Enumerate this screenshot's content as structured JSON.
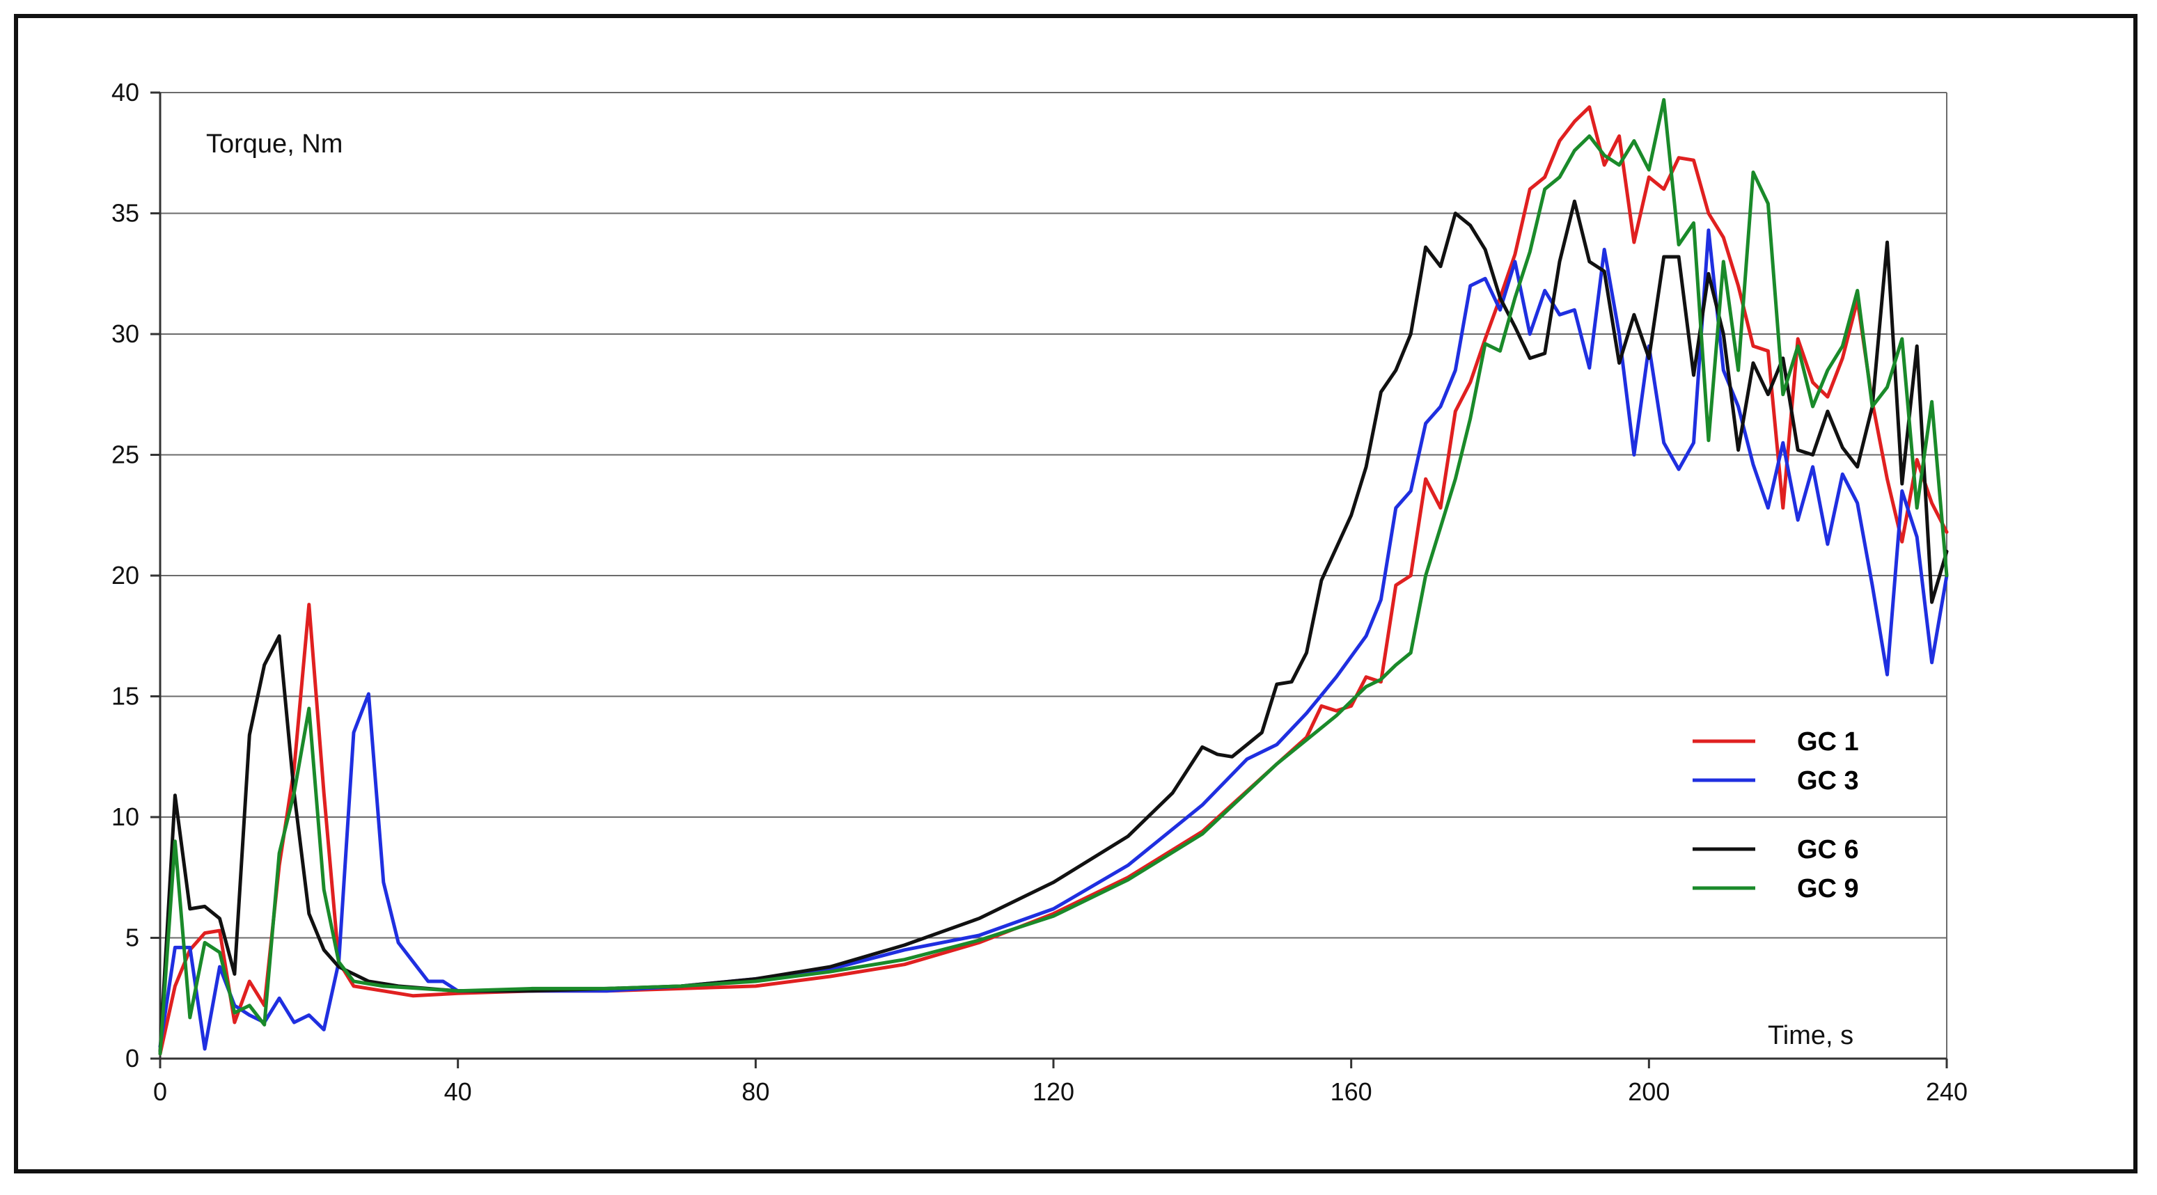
{
  "chart_data": {
    "type": "line",
    "ylabel": "Torque, Nm",
    "xlabel": "Time, s",
    "xlim": [
      0,
      240
    ],
    "ylim": [
      0,
      40
    ],
    "xticks": [
      0,
      40,
      80,
      120,
      160,
      200,
      240
    ],
    "yticks": [
      0,
      5,
      10,
      15,
      20,
      25,
      30,
      35,
      40
    ],
    "grid": "horizontal",
    "legend_position": "right",
    "series": [
      {
        "name": "GC 1",
        "color": "#e02020",
        "points": [
          [
            0,
            0.2
          ],
          [
            2,
            3
          ],
          [
            4,
            4.5
          ],
          [
            6,
            5.2
          ],
          [
            8,
            5.3
          ],
          [
            10,
            1.5
          ],
          [
            12,
            3.2
          ],
          [
            14,
            2.2
          ],
          [
            16,
            8
          ],
          [
            18,
            12
          ],
          [
            20,
            18.8
          ],
          [
            22,
            11
          ],
          [
            24,
            4
          ],
          [
            26,
            3
          ],
          [
            30,
            2.8
          ],
          [
            34,
            2.6
          ],
          [
            40,
            2.7
          ],
          [
            50,
            2.8
          ],
          [
            60,
            2.8
          ],
          [
            70,
            2.9
          ],
          [
            80,
            3
          ],
          [
            90,
            3.4
          ],
          [
            100,
            3.9
          ],
          [
            110,
            4.8
          ],
          [
            120,
            6
          ],
          [
            130,
            7.5
          ],
          [
            140,
            9.4
          ],
          [
            150,
            12.2
          ],
          [
            154,
            13.3
          ],
          [
            156,
            14.6
          ],
          [
            158,
            14.4
          ],
          [
            160,
            14.6
          ],
          [
            162,
            15.8
          ],
          [
            164,
            15.6
          ],
          [
            166,
            19.6
          ],
          [
            168,
            20
          ],
          [
            170,
            24
          ],
          [
            172,
            22.8
          ],
          [
            174,
            26.8
          ],
          [
            176,
            28
          ],
          [
            178,
            29.8
          ],
          [
            180,
            31.5
          ],
          [
            182,
            33.3
          ],
          [
            184,
            36
          ],
          [
            186,
            36.5
          ],
          [
            188,
            38
          ],
          [
            190,
            38.8
          ],
          [
            192,
            39.4
          ],
          [
            194,
            37
          ],
          [
            196,
            38.2
          ],
          [
            198,
            33.8
          ],
          [
            200,
            36.5
          ],
          [
            202,
            36
          ],
          [
            204,
            37.3
          ],
          [
            206,
            37.2
          ],
          [
            208,
            35
          ],
          [
            210,
            34
          ],
          [
            212,
            32
          ],
          [
            214,
            29.5
          ],
          [
            216,
            29.3
          ],
          [
            218,
            22.8
          ],
          [
            220,
            29.8
          ],
          [
            222,
            28
          ],
          [
            224,
            27.4
          ],
          [
            226,
            29
          ],
          [
            228,
            31.4
          ],
          [
            230,
            27.2
          ],
          [
            232,
            24
          ],
          [
            234,
            21.4
          ],
          [
            236,
            24.8
          ],
          [
            238,
            23
          ],
          [
            240,
            21.8
          ]
        ]
      },
      {
        "name": "GC 3",
        "color": "#1f2fe0",
        "points": [
          [
            0,
            0.5
          ],
          [
            2,
            4.6
          ],
          [
            4,
            4.6
          ],
          [
            6,
            0.4
          ],
          [
            8,
            3.8
          ],
          [
            10,
            2.2
          ],
          [
            12,
            1.8
          ],
          [
            14,
            1.5
          ],
          [
            16,
            2.5
          ],
          [
            18,
            1.5
          ],
          [
            20,
            1.8
          ],
          [
            22,
            1.2
          ],
          [
            24,
            4
          ],
          [
            26,
            13.5
          ],
          [
            28,
            15.1
          ],
          [
            30,
            7.3
          ],
          [
            32,
            4.8
          ],
          [
            34,
            4
          ],
          [
            36,
            3.2
          ],
          [
            38,
            3.2
          ],
          [
            40,
            2.8
          ],
          [
            50,
            2.8
          ],
          [
            60,
            2.8
          ],
          [
            70,
            3
          ],
          [
            80,
            3.3
          ],
          [
            90,
            3.7
          ],
          [
            100,
            4.5
          ],
          [
            110,
            5.1
          ],
          [
            120,
            6.2
          ],
          [
            130,
            8
          ],
          [
            140,
            10.5
          ],
          [
            146,
            12.4
          ],
          [
            150,
            13
          ],
          [
            154,
            14.3
          ],
          [
            158,
            15.8
          ],
          [
            162,
            17.5
          ],
          [
            164,
            19
          ],
          [
            166,
            22.8
          ],
          [
            168,
            23.5
          ],
          [
            170,
            26.3
          ],
          [
            172,
            27
          ],
          [
            174,
            28.5
          ],
          [
            176,
            32
          ],
          [
            178,
            32.3
          ],
          [
            180,
            31
          ],
          [
            182,
            33
          ],
          [
            184,
            30
          ],
          [
            186,
            31.8
          ],
          [
            188,
            30.8
          ],
          [
            190,
            31
          ],
          [
            192,
            28.6
          ],
          [
            194,
            33.5
          ],
          [
            196,
            30
          ],
          [
            198,
            25
          ],
          [
            200,
            29.5
          ],
          [
            202,
            25.5
          ],
          [
            204,
            24.4
          ],
          [
            206,
            25.5
          ],
          [
            208,
            34.3
          ],
          [
            210,
            28.5
          ],
          [
            212,
            27
          ],
          [
            214,
            24.6
          ],
          [
            216,
            22.8
          ],
          [
            218,
            25.5
          ],
          [
            220,
            22.3
          ],
          [
            222,
            24.5
          ],
          [
            224,
            21.3
          ],
          [
            226,
            24.2
          ],
          [
            228,
            23
          ],
          [
            230,
            19.6
          ],
          [
            232,
            15.9
          ],
          [
            234,
            23.5
          ],
          [
            236,
            21.6
          ],
          [
            238,
            16.4
          ],
          [
            240,
            20
          ]
        ]
      },
      {
        "name": "GC 6",
        "color": "#111111",
        "points": [
          [
            0,
            0.3
          ],
          [
            2,
            10.9
          ],
          [
            4,
            6.2
          ],
          [
            6,
            6.3
          ],
          [
            8,
            5.8
          ],
          [
            10,
            3.5
          ],
          [
            12,
            13.4
          ],
          [
            14,
            16.3
          ],
          [
            16,
            17.5
          ],
          [
            18,
            11
          ],
          [
            20,
            6
          ],
          [
            22,
            4.5
          ],
          [
            24,
            3.8
          ],
          [
            26,
            3.5
          ],
          [
            28,
            3.2
          ],
          [
            30,
            3.1
          ],
          [
            32,
            3
          ],
          [
            36,
            2.9
          ],
          [
            40,
            2.8
          ],
          [
            50,
            2.8
          ],
          [
            60,
            2.9
          ],
          [
            70,
            3
          ],
          [
            80,
            3.3
          ],
          [
            90,
            3.8
          ],
          [
            100,
            4.7
          ],
          [
            110,
            5.8
          ],
          [
            120,
            7.3
          ],
          [
            130,
            9.2
          ],
          [
            136,
            11
          ],
          [
            140,
            12.9
          ],
          [
            142,
            12.6
          ],
          [
            144,
            12.5
          ],
          [
            148,
            13.5
          ],
          [
            150,
            15.5
          ],
          [
            152,
            15.6
          ],
          [
            154,
            16.8
          ],
          [
            156,
            19.8
          ],
          [
            160,
            22.5
          ],
          [
            162,
            24.5
          ],
          [
            164,
            27.6
          ],
          [
            166,
            28.5
          ],
          [
            168,
            30
          ],
          [
            170,
            33.6
          ],
          [
            172,
            32.8
          ],
          [
            174,
            35
          ],
          [
            176,
            34.5
          ],
          [
            178,
            33.5
          ],
          [
            180,
            31.5
          ],
          [
            182,
            30.3
          ],
          [
            184,
            29
          ],
          [
            186,
            29.2
          ],
          [
            188,
            33
          ],
          [
            190,
            35.5
          ],
          [
            192,
            33
          ],
          [
            194,
            32.6
          ],
          [
            196,
            28.8
          ],
          [
            198,
            30.8
          ],
          [
            200,
            29
          ],
          [
            202,
            33.2
          ],
          [
            204,
            33.2
          ],
          [
            206,
            28.3
          ],
          [
            208,
            32.5
          ],
          [
            210,
            30
          ],
          [
            212,
            25.2
          ],
          [
            214,
            28.8
          ],
          [
            216,
            27.5
          ],
          [
            218,
            29
          ],
          [
            220,
            25.2
          ],
          [
            222,
            25
          ],
          [
            224,
            26.8
          ],
          [
            226,
            25.3
          ],
          [
            228,
            24.5
          ],
          [
            230,
            27
          ],
          [
            232,
            33.8
          ],
          [
            234,
            23.8
          ],
          [
            236,
            29.5
          ],
          [
            238,
            18.9
          ],
          [
            240,
            21
          ]
        ]
      },
      {
        "name": "GC 9",
        "color": "#1a8a2a",
        "points": [
          [
            0,
            0.2
          ],
          [
            2,
            9
          ],
          [
            4,
            1.7
          ],
          [
            6,
            4.8
          ],
          [
            8,
            4.4
          ],
          [
            10,
            1.9
          ],
          [
            12,
            2.2
          ],
          [
            14,
            1.4
          ],
          [
            16,
            8.5
          ],
          [
            18,
            11
          ],
          [
            20,
            14.5
          ],
          [
            22,
            7
          ],
          [
            24,
            4
          ],
          [
            26,
            3.2
          ],
          [
            30,
            3
          ],
          [
            40,
            2.8
          ],
          [
            50,
            2.9
          ],
          [
            60,
            2.9
          ],
          [
            70,
            3
          ],
          [
            80,
            3.2
          ],
          [
            90,
            3.6
          ],
          [
            100,
            4.1
          ],
          [
            110,
            4.9
          ],
          [
            120,
            5.9
          ],
          [
            130,
            7.4
          ],
          [
            140,
            9.3
          ],
          [
            150,
            12.2
          ],
          [
            158,
            14.2
          ],
          [
            162,
            15.4
          ],
          [
            164,
            15.7
          ],
          [
            166,
            16.3
          ],
          [
            168,
            16.8
          ],
          [
            170,
            20
          ],
          [
            172,
            22
          ],
          [
            174,
            24
          ],
          [
            176,
            26.5
          ],
          [
            178,
            29.6
          ],
          [
            180,
            29.3
          ],
          [
            182,
            31.5
          ],
          [
            184,
            33.4
          ],
          [
            186,
            36
          ],
          [
            188,
            36.5
          ],
          [
            190,
            37.6
          ],
          [
            192,
            38.2
          ],
          [
            194,
            37.4
          ],
          [
            196,
            37
          ],
          [
            198,
            38
          ],
          [
            200,
            36.8
          ],
          [
            202,
            39.7
          ],
          [
            204,
            33.7
          ],
          [
            206,
            34.6
          ],
          [
            208,
            25.6
          ],
          [
            210,
            33
          ],
          [
            212,
            28.5
          ],
          [
            214,
            36.7
          ],
          [
            216,
            35.4
          ],
          [
            218,
            27.5
          ],
          [
            220,
            29.5
          ],
          [
            222,
            27
          ],
          [
            224,
            28.5
          ],
          [
            226,
            29.5
          ],
          [
            228,
            31.8
          ],
          [
            230,
            27
          ],
          [
            232,
            27.8
          ],
          [
            234,
            29.8
          ],
          [
            236,
            22.8
          ],
          [
            238,
            27.2
          ],
          [
            240,
            20
          ]
        ]
      }
    ]
  }
}
